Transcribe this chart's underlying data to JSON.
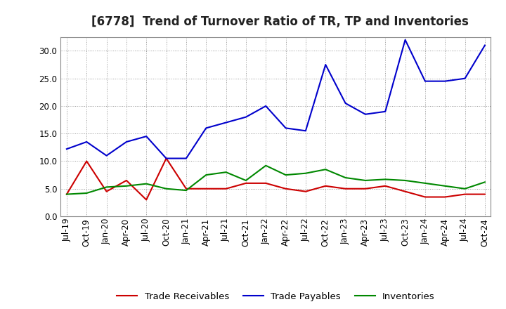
{
  "title": "[6778]  Trend of Turnover Ratio of TR, TP and Inventories",
  "labels": [
    "Jul-19",
    "Oct-19",
    "Jan-20",
    "Apr-20",
    "Jul-20",
    "Oct-20",
    "Jan-21",
    "Apr-21",
    "Jul-21",
    "Oct-21",
    "Jan-22",
    "Apr-22",
    "Jul-22",
    "Oct-22",
    "Jan-23",
    "Apr-23",
    "Jul-23",
    "Oct-23",
    "Jan-24",
    "Apr-24",
    "Jul-24",
    "Oct-24"
  ],
  "trade_receivables": [
    4.0,
    10.0,
    4.5,
    6.5,
    3.0,
    10.5,
    5.0,
    5.0,
    5.0,
    6.0,
    6.0,
    5.0,
    4.5,
    5.5,
    5.0,
    5.0,
    5.5,
    4.5,
    3.5,
    3.5,
    4.0,
    4.0
  ],
  "trade_payables": [
    12.2,
    13.5,
    11.0,
    13.5,
    14.5,
    10.5,
    10.5,
    16.0,
    17.0,
    18.0,
    20.0,
    16.0,
    15.5,
    27.5,
    20.5,
    18.5,
    19.0,
    32.0,
    24.5,
    24.5,
    25.0,
    31.0
  ],
  "inventories": [
    4.0,
    4.2,
    5.3,
    5.5,
    5.9,
    5.0,
    4.7,
    7.5,
    8.0,
    6.5,
    9.2,
    7.5,
    7.8,
    8.5,
    7.0,
    6.5,
    6.7,
    6.5,
    6.0,
    5.5,
    5.0,
    6.2
  ],
  "ylim": [
    0.0,
    32.5
  ],
  "yticks": [
    0.0,
    5.0,
    10.0,
    15.0,
    20.0,
    25.0,
    30.0
  ],
  "color_tr": "#cc0000",
  "color_tp": "#0000cc",
  "color_inv": "#008800",
  "bg_color": "#ffffff",
  "plot_bg_color": "#ffffff",
  "legend_tr": "Trade Receivables",
  "legend_tp": "Trade Payables",
  "legend_inv": "Inventories",
  "title_fontsize": 12,
  "tick_fontsize": 8.5,
  "legend_fontsize": 9.5,
  "linewidth": 1.5
}
